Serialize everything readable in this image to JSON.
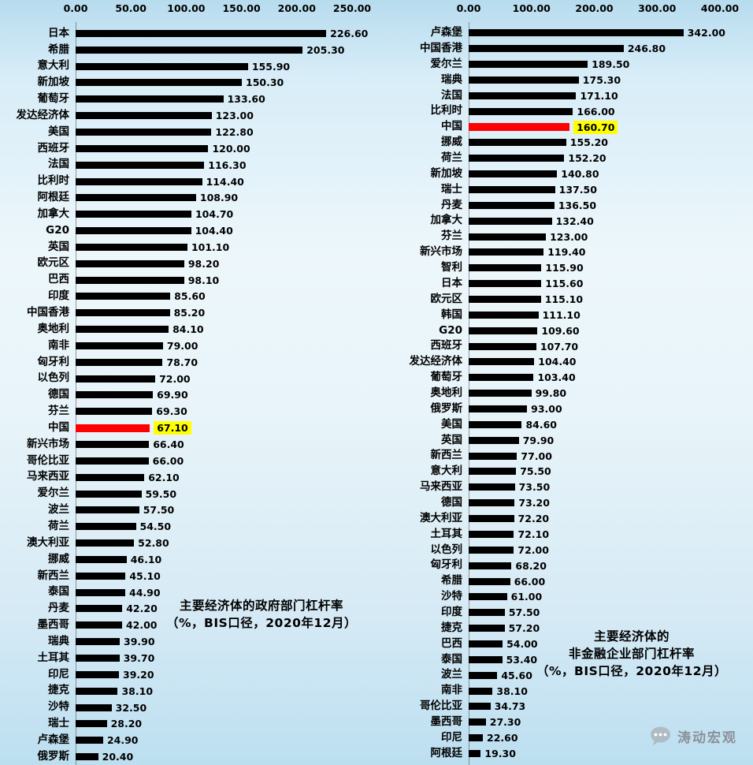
{
  "colors": {
    "bar": "#000000",
    "highlight_bar": "#ff0000",
    "highlight_value_bg": "#ffff00",
    "category_text": "#000000",
    "watermark_text": "#8a9199"
  },
  "watermark": {
    "text": "涛动宏观",
    "icon": "chat-bubble-icon"
  },
  "chart_data": [
    {
      "type": "bar",
      "orientation": "horizontal",
      "title": "主要经济体的政府部门杠杆率（%，BIS口径，2020年12月）",
      "title_lines": [
        "主要经济体的政府部门杠杆率",
        "（%，BIS口径，2020年12月）"
      ],
      "xlim": [
        0,
        250
      ],
      "x_ticks": [
        0,
        50,
        100,
        150,
        200,
        250
      ],
      "x_tick_labels": [
        "0.00",
        "50.00",
        "100.00",
        "150.00",
        "200.00",
        "250.00"
      ],
      "grid": false,
      "legend": false,
      "highlight_category": "中国",
      "categories": [
        "日本",
        "希腊",
        "意大利",
        "新加坡",
        "葡萄牙",
        "发达经济体",
        "美国",
        "西班牙",
        "法国",
        "比利时",
        "阿根廷",
        "加拿大",
        "G20",
        "英国",
        "欧元区",
        "巴西",
        "印度",
        "中国香港",
        "奥地利",
        "南非",
        "匈牙利",
        "以色列",
        "德国",
        "芬兰",
        "中国",
        "新兴市场",
        "哥伦比亚",
        "马来西亚",
        "爱尔兰",
        "波兰",
        "荷兰",
        "澳大利亚",
        "挪威",
        "新西兰",
        "泰国",
        "丹麦",
        "墨西哥",
        "瑞典",
        "土耳其",
        "印尼",
        "捷克",
        "沙特",
        "瑞士",
        "卢森堡",
        "俄罗斯"
      ],
      "values": [
        226.6,
        205.3,
        155.9,
        150.3,
        133.6,
        123.0,
        122.8,
        120.0,
        116.3,
        114.4,
        108.9,
        104.7,
        104.4,
        101.1,
        98.2,
        98.1,
        85.6,
        85.2,
        84.1,
        79.0,
        78.7,
        72.0,
        69.9,
        69.3,
        67.1,
        66.4,
        66.0,
        62.1,
        59.5,
        57.5,
        54.5,
        52.8,
        46.1,
        45.1,
        44.9,
        42.2,
        42.0,
        39.9,
        39.7,
        39.2,
        38.1,
        32.5,
        28.2,
        24.9,
        20.4
      ],
      "value_labels": [
        "226.60",
        "205.30",
        "155.90",
        "150.30",
        "133.60",
        "123.00",
        "122.80",
        "120.00",
        "116.30",
        "114.40",
        "108.90",
        "104.70",
        "104.40",
        "101.10",
        "98.20",
        "98.10",
        "85.60",
        "85.20",
        "84.10",
        "79.00",
        "78.70",
        "72.00",
        "69.90",
        "69.30",
        "67.10",
        "66.40",
        "66.00",
        "62.10",
        "59.50",
        "57.50",
        "54.50",
        "52.80",
        "46.10",
        "45.10",
        "44.90",
        "42.20",
        "42.00",
        "39.90",
        "39.70",
        "39.20",
        "38.10",
        "32.50",
        "28.20",
        "24.90",
        "20.40"
      ]
    },
    {
      "type": "bar",
      "orientation": "horizontal",
      "title": "主要经济体的非金融企业部门杠杆率（%，BIS口径，2020年12月）",
      "title_lines": [
        "主要经济体的",
        "非金融企业部门杠杆率",
        "（%，BIS口径，2020年12月）"
      ],
      "xlim": [
        0,
        400
      ],
      "x_ticks": [
        0,
        100,
        200,
        300,
        400
      ],
      "x_tick_labels": [
        "0.00",
        "100.00",
        "200.00",
        "300.00",
        "400.00"
      ],
      "grid": false,
      "legend": false,
      "highlight_category": "中国",
      "categories": [
        "卢森堡",
        "中国香港",
        "爱尔兰",
        "瑞典",
        "法国",
        "比利时",
        "中国",
        "挪威",
        "荷兰",
        "新加坡",
        "瑞士",
        "丹麦",
        "加拿大",
        "芬兰",
        "新兴市场",
        "智利",
        "日本",
        "欧元区",
        "韩国",
        "G20",
        "西班牙",
        "发达经济体",
        "葡萄牙",
        "奥地利",
        "俄罗斯",
        "美国",
        "英国",
        "新西兰",
        "意大利",
        "马来西亚",
        "德国",
        "澳大利亚",
        "土耳其",
        "以色列",
        "匈牙利",
        "希腊",
        "沙特",
        "印度",
        "捷克",
        "巴西",
        "泰国",
        "波兰",
        "南非",
        "哥伦比亚",
        "墨西哥",
        "印尼",
        "阿根廷"
      ],
      "values": [
        342.0,
        246.8,
        189.5,
        175.3,
        171.1,
        166.0,
        160.7,
        155.2,
        152.2,
        140.8,
        137.5,
        136.5,
        132.4,
        123.0,
        119.4,
        115.9,
        115.6,
        115.1,
        111.1,
        109.6,
        107.7,
        104.4,
        103.4,
        99.8,
        93.0,
        84.6,
        79.9,
        77.0,
        75.5,
        73.5,
        73.2,
        72.2,
        72.1,
        72.0,
        68.2,
        66.0,
        61.0,
        57.5,
        57.2,
        54.0,
        53.4,
        45.6,
        38.1,
        34.73,
        27.3,
        22.6,
        19.3
      ],
      "value_labels": [
        "342.00",
        "246.80",
        "189.50",
        "175.30",
        "171.10",
        "166.00",
        "160.70",
        "155.20",
        "152.20",
        "140.80",
        "137.50",
        "136.50",
        "132.40",
        "123.00",
        "119.40",
        "115.90",
        "115.60",
        "115.10",
        "111.10",
        "109.60",
        "107.70",
        "104.40",
        "103.40",
        "99.80",
        "93.00",
        "84.60",
        "79.90",
        "77.00",
        "75.50",
        "73.50",
        "73.20",
        "72.20",
        "72.10",
        "72.00",
        "68.20",
        "66.00",
        "61.00",
        "57.50",
        "57.20",
        "54.00",
        "53.40",
        "45.60",
        "38.10",
        "34.73",
        "27.30",
        "22.60",
        "19.30"
      ]
    }
  ]
}
